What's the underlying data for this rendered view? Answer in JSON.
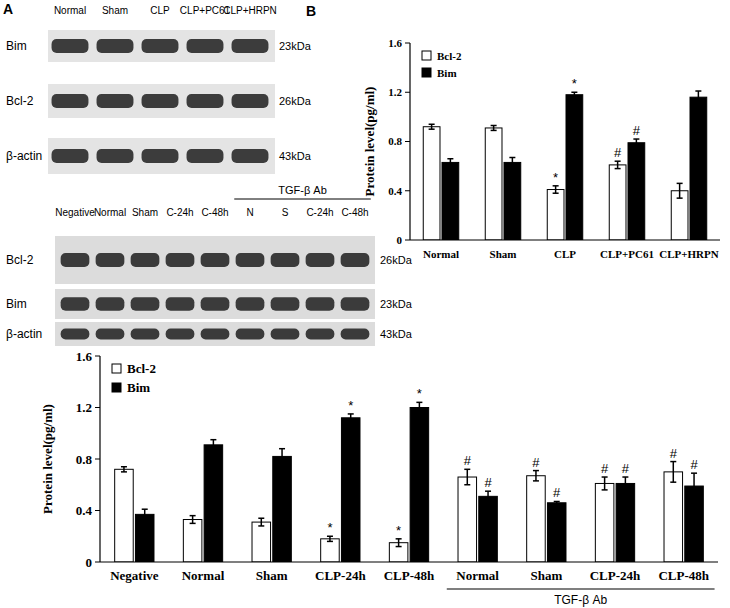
{
  "panels": [
    "A",
    "B"
  ],
  "blots": [
    {
      "lanes": [
        "Normal",
        "Sham",
        "CLP",
        "CLP+PC61",
        "CLP+HRPN"
      ],
      "rows": [
        {
          "label": "Bim",
          "size": "23kDa"
        },
        {
          "label": "Bcl-2",
          "size": "26kDa"
        },
        {
          "label": "β-actin",
          "size": "43kDa"
        }
      ]
    },
    {
      "lanes": [
        "Negative",
        "Normal",
        "Sham",
        "C-24h",
        "C-48h",
        "N",
        "S",
        "C-24h",
        "C-48h"
      ],
      "rows": [
        {
          "label": "Bcl-2",
          "size": "26kDa"
        },
        {
          "label": "Bim",
          "size": "23kDa"
        },
        {
          "label": "β-actin",
          "size": "43kDa"
        }
      ],
      "group": {
        "label": "TGF-β Ab",
        "start": 5,
        "end": 8
      }
    }
  ],
  "chart_data": [
    {
      "type": "bar",
      "y_label": "Protein level(pg/ml)",
      "categories": [
        "Normal",
        "Sham",
        "CLP",
        "CLP+PC61",
        "CLP+HRPN"
      ],
      "series": [
        {
          "name": "Bcl-2",
          "color": "#ffffff",
          "values": [
            0.92,
            0.91,
            0.41,
            0.61,
            0.4
          ],
          "errors": [
            0.02,
            0.02,
            0.03,
            0.03,
            0.06
          ],
          "annotations": [
            null,
            null,
            "*",
            "#",
            null
          ]
        },
        {
          "name": "Bim",
          "color": "#000000",
          "values": [
            0.63,
            0.63,
            1.18,
            0.79,
            1.16
          ],
          "errors": [
            0.03,
            0.04,
            0.02,
            0.03,
            0.05
          ],
          "annotations": [
            null,
            null,
            "*",
            "#",
            null
          ]
        }
      ],
      "ylim": [
        0,
        1.6
      ],
      "yticks": [
        0,
        0.4,
        0.8,
        1.2,
        1.6
      ],
      "grid": false,
      "legend": "upper left"
    },
    {
      "type": "bar",
      "y_label": "Protein level(pg/ml)",
      "categories": [
        "Negative",
        "Normal",
        "Sham",
        "CLP-24h",
        "CLP-48h",
        "Normal",
        "Sham",
        "CLP-24h",
        "CLP-48h"
      ],
      "series": [
        {
          "name": "Bcl-2",
          "color": "#ffffff",
          "values": [
            0.72,
            0.33,
            0.31,
            0.18,
            0.15,
            0.66,
            0.67,
            0.61,
            0.7
          ],
          "errors": [
            0.02,
            0.03,
            0.03,
            0.02,
            0.03,
            0.06,
            0.04,
            0.05,
            0.08
          ],
          "annotations": [
            null,
            null,
            null,
            "*",
            "*",
            "#",
            "#",
            "#",
            "#"
          ]
        },
        {
          "name": "Bim",
          "color": "#000000",
          "values": [
            0.37,
            0.91,
            0.82,
            1.12,
            1.2,
            0.51,
            0.46,
            0.61,
            0.59
          ],
          "errors": [
            0.04,
            0.04,
            0.06,
            0.03,
            0.04,
            0.04,
            0.01,
            0.05,
            0.1
          ],
          "annotations": [
            null,
            null,
            null,
            "*",
            "*",
            "#",
            "#",
            "#",
            "#"
          ]
        }
      ],
      "ylim": [
        0,
        1.6
      ],
      "yticks": [
        0,
        0.4,
        0.8,
        1.2,
        1.6
      ],
      "grid": false,
      "legend": "upper left",
      "groups": [
        {
          "label": "TGF-β Ab",
          "start": 5,
          "end": 8
        }
      ]
    }
  ]
}
